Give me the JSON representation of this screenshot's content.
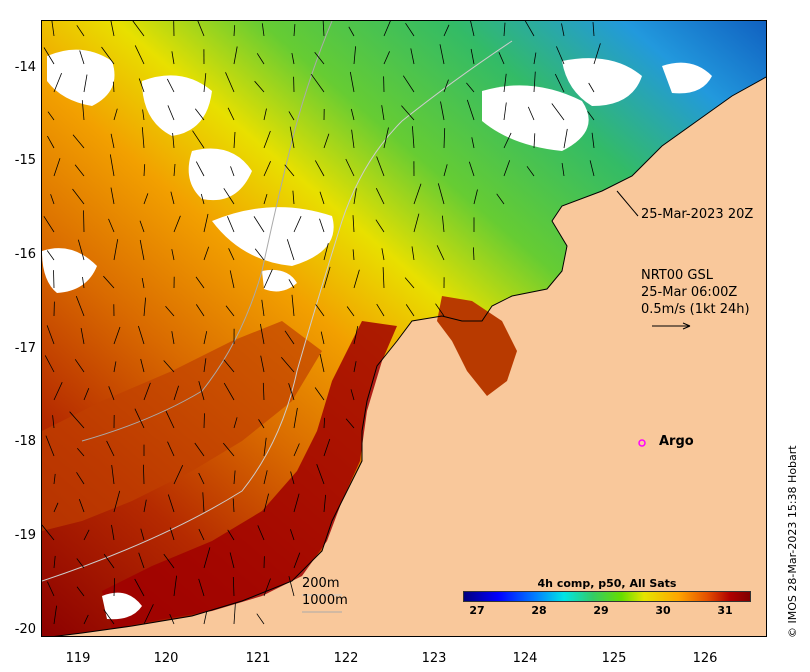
{
  "map": {
    "y_axis_labels": [
      "-14",
      "-15",
      "-16",
      "-17",
      "-18",
      "-19",
      "-20"
    ],
    "x_axis_labels": [
      "119",
      "120",
      "121",
      "122",
      "123",
      "124",
      "125",
      "126"
    ],
    "annotations": {
      "satellite_time": "25-Mar-2023 20Z",
      "product": "NRT00 GSL",
      "product_time": "25-Mar 06:00Z",
      "vector_scale": "0.5m/s (1kt 24h)",
      "argo_label": "Argo",
      "contour_200": "200m",
      "contour_1000": "1000m"
    },
    "colorbar": {
      "title": "4h comp, p50, All Sats",
      "ticks": [
        "27",
        "28",
        "29",
        "30",
        "31"
      ]
    },
    "credit": "© IMOS 28-Mar-2023 15:38 Hobart",
    "colors": {
      "land": "#f9c89b",
      "argo_marker": "#ff00ff"
    }
  }
}
